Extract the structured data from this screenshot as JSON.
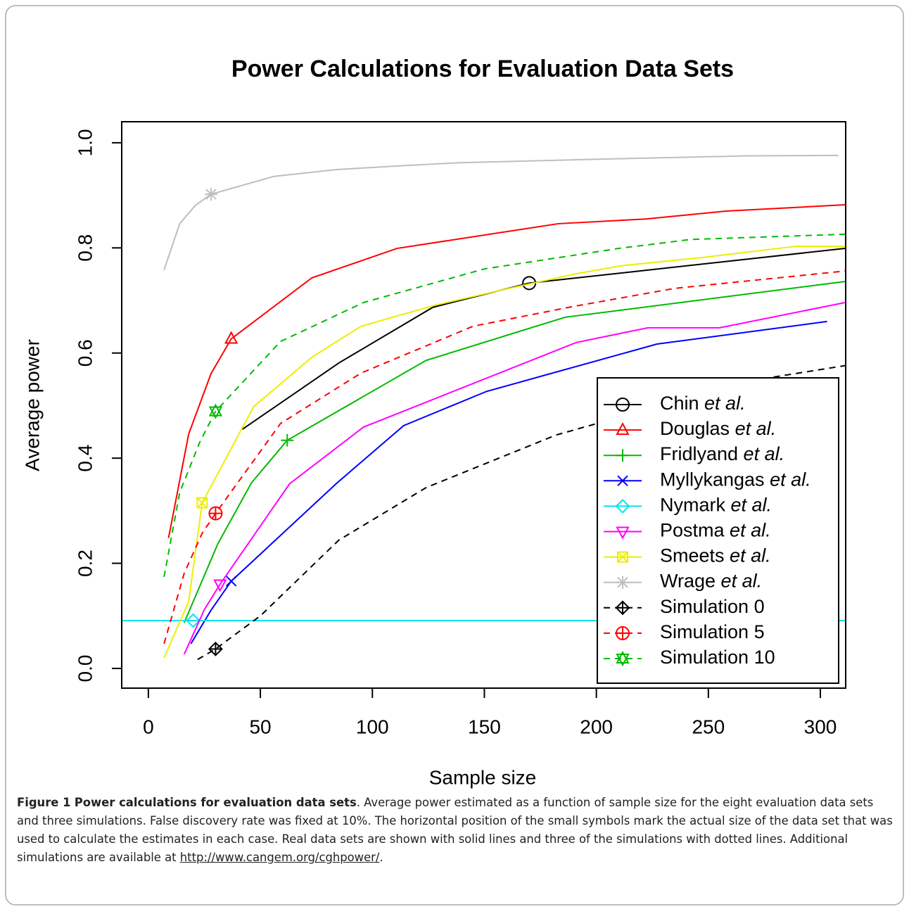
{
  "chart_data": {
    "type": "line",
    "title": "Power Calculations for Evaluation Data Sets",
    "x_label": "Sample size",
    "y_label": "Average power",
    "xlim": [
      -11.9,
      311.3
    ],
    "ylim": [
      -0.0375,
      1.04
    ],
    "xticks": [
      0,
      50,
      100,
      150,
      200,
      250,
      300
    ],
    "yticks": [
      {
        "value": 0,
        "label": "0.0"
      },
      {
        "value": 0.2,
        "label": "0.2"
      },
      {
        "value": 0.4,
        "label": "0.4"
      },
      {
        "value": 0.6,
        "label": "0.6"
      },
      {
        "value": 0.8,
        "label": "0.8"
      },
      {
        "value": 1,
        "label": "1.0"
      }
    ],
    "legend": "bottom-right",
    "series": [
      {
        "name": "Chin et al.",
        "color": "#000000",
        "dashed": false,
        "marker": "circle",
        "marker_x": 170,
        "marker_y": 0.733,
        "x": [
          42,
          85,
          127,
          170,
          311
        ],
        "values": [
          0.455,
          0.581,
          0.687,
          0.733,
          0.799
        ]
      },
      {
        "name": "Douglas et al.",
        "color": "#ff0000",
        "dashed": false,
        "marker": "triangle-up",
        "marker_x": 37,
        "marker_y": 0.627,
        "x": [
          9,
          18,
          28,
          37,
          73,
          111,
          183,
          222,
          258,
          311
        ],
        "values": [
          0.248,
          0.446,
          0.561,
          0.627,
          0.743,
          0.799,
          0.846,
          0.855,
          0.87,
          0.882
        ]
      },
      {
        "name": "Fridlyand et al.",
        "color": "#00bb00",
        "dashed": false,
        "marker": "plus",
        "marker_x": 62,
        "marker_y": 0.434,
        "x": [
          16,
          31,
          46,
          62,
          124,
          186,
          311
        ],
        "values": [
          0.087,
          0.237,
          0.353,
          0.434,
          0.586,
          0.668,
          0.736
        ]
      },
      {
        "name": "Myllykangas et al.",
        "color": "#0000ff",
        "dashed": false,
        "marker": "cross",
        "marker_x": 37,
        "marker_y": 0.166,
        "x": [
          19,
          28,
          37,
          84,
          114,
          151,
          227,
          303
        ],
        "values": [
          0.047,
          0.111,
          0.166,
          0.352,
          0.462,
          0.527,
          0.617,
          0.66
        ]
      },
      {
        "name": "Nymark et al.",
        "color": "#00e5ee",
        "dashed": false,
        "marker": "diamond",
        "marker_x": 20,
        "marker_y": 0.091,
        "x": [
          -11.9,
          311.3
        ],
        "values": [
          0.091,
          0.091
        ]
      },
      {
        "name": "Postma et al.",
        "color": "#ff00ff",
        "dashed": false,
        "marker": "triangle-down",
        "marker_x": 32,
        "marker_y": 0.16,
        "x": [
          16,
          25,
          32,
          63,
          96,
          191,
          223,
          255,
          311
        ],
        "values": [
          0.027,
          0.112,
          0.16,
          0.351,
          0.459,
          0.62,
          0.648,
          0.648,
          0.696
        ]
      },
      {
        "name": "Smeets et al.",
        "color": "#eeee00",
        "dashed": false,
        "marker": "square-cross",
        "marker_x": 24,
        "marker_y": 0.315,
        "x": [
          7,
          18,
          24,
          47,
          73,
          95,
          128,
          158,
          190,
          211,
          248,
          289,
          311
        ],
        "values": [
          0.02,
          0.127,
          0.315,
          0.498,
          0.592,
          0.651,
          0.691,
          0.72,
          0.75,
          0.766,
          0.782,
          0.803,
          0.803
        ]
      },
      {
        "name": "Wrage et al.",
        "color": "#bebebe",
        "dashed": false,
        "marker": "asterisk",
        "marker_x": 28,
        "marker_y": 0.902,
        "x": [
          7,
          14,
          21,
          28,
          56,
          84,
          112,
          139,
          204,
          267,
          308
        ],
        "values": [
          0.758,
          0.846,
          0.881,
          0.902,
          0.936,
          0.949,
          0.956,
          0.962,
          0.969,
          0.975,
          0.976
        ]
      },
      {
        "name": "Simulation 0",
        "color": "#000000",
        "dashed": true,
        "marker": "diamond-plus",
        "marker_x": 30,
        "marker_y": 0.037,
        "x": [
          22,
          30,
          50,
          85,
          124,
          182,
          267,
          311
        ],
        "values": [
          0.017,
          0.037,
          0.1,
          0.244,
          0.344,
          0.444,
          0.546,
          0.576
        ]
      },
      {
        "name": "Simulation 5",
        "color": "#ff0000",
        "dashed": true,
        "marker": "circle-plus",
        "marker_x": 30,
        "marker_y": 0.295,
        "x": [
          7,
          16,
          24,
          30,
          59,
          95,
          145,
          189,
          235,
          311
        ],
        "values": [
          0.047,
          0.181,
          0.257,
          0.295,
          0.466,
          0.562,
          0.651,
          0.688,
          0.723,
          0.756
        ]
      },
      {
        "name": "Simulation 10",
        "color": "#00bb00",
        "dashed": true,
        "marker": "star",
        "marker_x": 30,
        "marker_y": 0.489,
        "x": [
          7,
          14,
          23,
          30,
          59,
          96,
          150,
          210,
          242,
          311
        ],
        "values": [
          0.174,
          0.335,
          0.431,
          0.489,
          0.622,
          0.696,
          0.76,
          0.799,
          0.816,
          0.826
        ]
      }
    ]
  },
  "caption": {
    "label": "Figure 1",
    "title": "Power calculations for evaluation data sets",
    "text": ". Average power estimated as a function of sample size for the eight evaluation data sets and three simulations. False discovery rate was fixed at 10%. The horizontal position of the small symbols mark the actual size of the data set that was used to calculate the estimates in each case. Real data sets are shown with solid lines and three of the simulations with dotted lines. Additional simulations are available at ",
    "link": "http://www.cangem.org/cghpower/",
    "end": "."
  }
}
